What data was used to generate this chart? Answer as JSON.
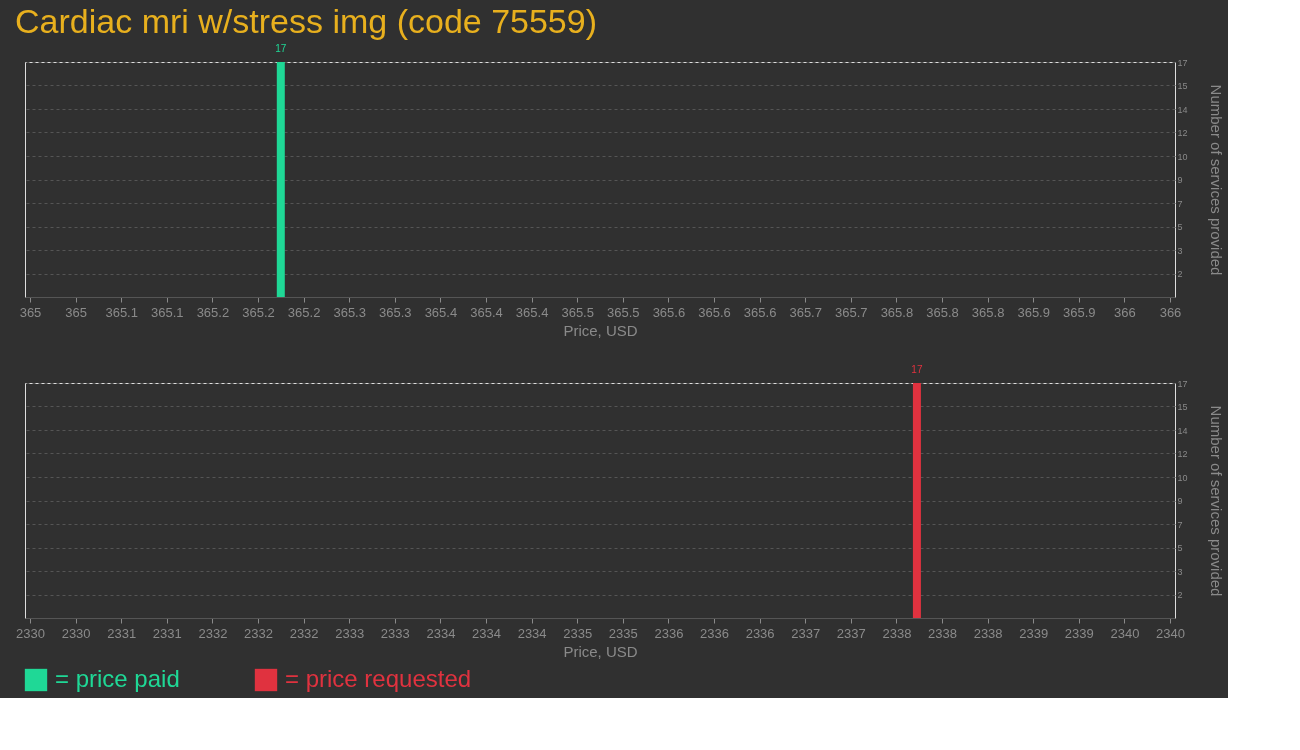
{
  "chart_data": [
    {
      "type": "bar",
      "title": "Cardiac mri w/stress img (code 75559)",
      "xlabel": "Price, USD",
      "ylabel": "Number of services provided",
      "x": [
        365.22
      ],
      "series": [
        {
          "name": "= price paid",
          "color": "#1fd896",
          "values": [
            17
          ]
        }
      ],
      "xlim": [
        365,
        366
      ],
      "xticks": [
        365,
        {
          "value": 365.04,
          "label": "365"
        },
        {
          "value": 365.08,
          "label": "365.1"
        },
        {
          "value": 365.12,
          "label": "365.1"
        },
        {
          "value": 365.16,
          "label": "365.2"
        },
        365.2,
        {
          "value": 365.24,
          "label": "365.2"
        },
        {
          "value": 365.28,
          "label": "365.3"
        },
        {
          "value": 365.32,
          "label": "365.3"
        },
        {
          "value": 365.36,
          "label": "365.4"
        },
        365.4,
        {
          "value": 365.44,
          "label": "365.4"
        },
        {
          "value": 365.48,
          "label": "365.5"
        },
        {
          "value": 365.52,
          "label": "365.5"
        },
        {
          "value": 365.56,
          "label": "365.6"
        },
        365.6,
        {
          "value": 365.64,
          "label": "365.6"
        },
        {
          "value": 365.68,
          "label": "365.7"
        },
        {
          "value": 365.72,
          "label": "365.7"
        },
        {
          "value": 365.76,
          "label": "365.8"
        },
        365.8,
        {
          "value": 365.84,
          "label": "365.8"
        },
        {
          "value": 365.88,
          "label": "365.9"
        },
        {
          "value": 365.92,
          "label": "365.9"
        },
        {
          "value": 365.96,
          "label": "366"
        },
        366
      ],
      "ylim": [
        0,
        17
      ],
      "yticks": [
        {
          "value": 1.7,
          "label": "2"
        },
        {
          "value": 3.4,
          "label": "3"
        },
        {
          "value": 5.1,
          "label": "5"
        },
        {
          "value": 6.8,
          "label": "7"
        },
        {
          "value": 8.5,
          "label": "9"
        },
        {
          "value": 10.2,
          "label": "10"
        },
        {
          "value": 11.9,
          "label": "12"
        },
        {
          "value": 13.6,
          "label": "14"
        },
        {
          "value": 15.3,
          "label": "15"
        },
        17
      ],
      "grid": "y",
      "data_labels": true,
      "legend": "bottom left"
    },
    {
      "type": "bar",
      "xlabel": "Price, USD",
      "ylabel": "Number of services provided",
      "x": [
        2337.78
      ],
      "series": [
        {
          "name": "= price requested",
          "color": "#e0323f",
          "values": [
            17
          ]
        }
      ],
      "xlim": [
        2330,
        2340
      ],
      "xticks": [
        2330,
        {
          "value": 2330.4,
          "label": "2330"
        },
        {
          "value": 2330.8,
          "label": "2331"
        },
        {
          "value": 2331.2,
          "label": "2331"
        },
        {
          "value": 2331.6,
          "label": "2332"
        },
        2332,
        {
          "value": 2332.4,
          "label": "2332"
        },
        {
          "value": 2332.8,
          "label": "2333"
        },
        {
          "value": 2333.2,
          "label": "2333"
        },
        {
          "value": 2333.6,
          "label": "2334"
        },
        2334,
        {
          "value": 2334.4,
          "label": "2334"
        },
        {
          "value": 2334.8,
          "label": "2335"
        },
        {
          "value": 2335.2,
          "label": "2335"
        },
        {
          "value": 2335.6,
          "label": "2336"
        },
        2336,
        {
          "value": 2336.4,
          "label": "2336"
        },
        {
          "value": 2336.8,
          "label": "2337"
        },
        {
          "value": 2337.2,
          "label": "2337"
        },
        {
          "value": 2337.6,
          "label": "2338"
        },
        2338,
        {
          "value": 2338.4,
          "label": "2338"
        },
        {
          "value": 2338.8,
          "label": "2339"
        },
        {
          "value": 2339.2,
          "label": "2339"
        },
        {
          "value": 2339.6,
          "label": "2340"
        },
        2340
      ],
      "ylim": [
        0,
        17
      ],
      "yticks": [
        {
          "value": 1.7,
          "label": "2"
        },
        {
          "value": 3.4,
          "label": "3"
        },
        {
          "value": 5.1,
          "label": "5"
        },
        {
          "value": 6.8,
          "label": "7"
        },
        {
          "value": 8.5,
          "label": "9"
        },
        {
          "value": 10.2,
          "label": "10"
        },
        {
          "value": 11.9,
          "label": "12"
        },
        {
          "value": 13.6,
          "label": "14"
        },
        {
          "value": 15.3,
          "label": "15"
        },
        17
      ],
      "grid": "y",
      "data_labels": true,
      "legend": "bottom"
    }
  ]
}
